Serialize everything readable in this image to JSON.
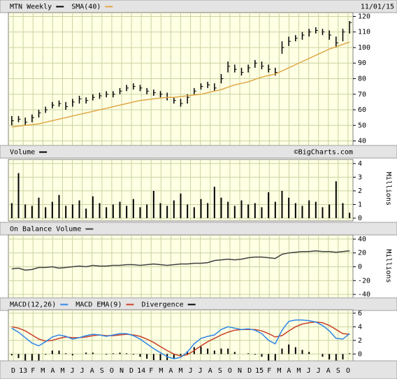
{
  "chart_data": [
    {
      "type": "ohlc",
      "date": "11/01/15",
      "series": [
        {
          "name": "MTN Weekly",
          "color": "#000000",
          "high": [
            56,
            56,
            55,
            57,
            60,
            62,
            65,
            66,
            65,
            67,
            69,
            68,
            70,
            71,
            72,
            72,
            74,
            76,
            77,
            76,
            74,
            73,
            72,
            71,
            68,
            67,
            70,
            74,
            77,
            78,
            77,
            83,
            91,
            89,
            87,
            89,
            92,
            91,
            89,
            87,
            104,
            107,
            108,
            110,
            112,
            113,
            112,
            111,
            107,
            112,
            117
          ],
          "low": [
            50,
            52,
            50,
            52,
            55,
            58,
            61,
            62,
            60,
            62,
            64,
            64,
            66,
            67,
            68,
            68,
            70,
            72,
            73,
            72,
            70,
            69,
            68,
            66,
            64,
            62,
            64,
            70,
            73,
            74,
            72,
            77,
            84,
            84,
            82,
            84,
            87,
            86,
            84,
            82,
            96,
            101,
            104,
            105,
            107,
            109,
            108,
            105,
            100,
            104,
            109
          ],
          "close": [
            53,
            54,
            52,
            55,
            58,
            60,
            63,
            64,
            62,
            65,
            67,
            66,
            68,
            69,
            70,
            70,
            72,
            74,
            75,
            74,
            72,
            71,
            70,
            68,
            66,
            64,
            68,
            72,
            75,
            76,
            74,
            80,
            88,
            86,
            84,
            87,
            90,
            88,
            86,
            84,
            100,
            104,
            106,
            108,
            110,
            111,
            110,
            108,
            103,
            110,
            116
          ]
        },
        {
          "name": "SMA(40)",
          "color": "#e0a848",
          "values": [
            49,
            49.5,
            50,
            50.5,
            51,
            52,
            53,
            54,
            55,
            56,
            57,
            58,
            59,
            60,
            61,
            62,
            63,
            64,
            65,
            66,
            66.5,
            67,
            67.5,
            68,
            68,
            68.5,
            69,
            69.5,
            70,
            71,
            72,
            73,
            74.5,
            76,
            77,
            78,
            79.5,
            81,
            82,
            83,
            85,
            87,
            89,
            91,
            93,
            95,
            97,
            99,
            100.5,
            102,
            103.5
          ]
        }
      ],
      "ylim": [
        38,
        122
      ],
      "yticks": [
        40,
        50,
        60,
        70,
        80,
        90,
        100,
        110,
        120
      ],
      "grid": true
    },
    {
      "type": "bar",
      "credit": "©BigCharts.com",
      "unit": "Millions",
      "series": [
        {
          "name": "Volume",
          "color": "#000000",
          "values": [
            1.1,
            3.3,
            1.0,
            0.9,
            1.5,
            0.8,
            1.2,
            1.7,
            0.9,
            1.0,
            1.3,
            0.7,
            1.6,
            1.1,
            0.8,
            1.0,
            1.2,
            0.9,
            1.4,
            0.8,
            1.0,
            2.0,
            1.1,
            0.9,
            1.3,
            1.8,
            1.0,
            0.8,
            1.4,
            1.1,
            2.3,
            1.5,
            1.2,
            0.9,
            1.3,
            1.0,
            1.1,
            0.8,
            1.9,
            1.2,
            2.0,
            1.5,
            1.1,
            0.9,
            1.3,
            1.2,
            0.8,
            1.0,
            2.7,
            1.1,
            0.4
          ]
        }
      ],
      "ylim": [
        0,
        4.3
      ],
      "yticks": [
        0,
        1,
        2,
        3,
        4
      ],
      "grid": true
    },
    {
      "type": "line",
      "unit": "Millions",
      "series": [
        {
          "name": "On Balance Volume",
          "color": "#404040",
          "values": [
            -3,
            -2,
            -5,
            -4,
            -1,
            -1,
            0,
            -2,
            -1,
            0,
            1,
            0,
            2,
            1,
            1,
            2,
            2,
            3,
            3,
            2,
            3,
            4,
            3,
            2,
            3,
            4,
            4,
            5,
            5,
            6,
            9,
            10,
            11,
            10,
            11,
            13,
            14,
            14,
            13,
            12,
            18,
            20,
            21,
            22,
            22,
            23,
            22,
            22,
            21,
            22,
            23
          ]
        }
      ],
      "ylim": [
        -44,
        46
      ],
      "yticks": [
        -40,
        -20,
        0,
        20,
        40
      ],
      "grid": true
    },
    {
      "type": "macd",
      "series": [
        {
          "name": "MACD(12,26)",
          "color": "#2f86e8",
          "values": [
            3.8,
            3.2,
            2.4,
            1.6,
            1.2,
            1.8,
            2.5,
            2.8,
            2.6,
            2.2,
            2.4,
            2.7,
            2.9,
            2.8,
            2.6,
            2.8,
            3.0,
            3.0,
            2.7,
            2.2,
            1.5,
            0.8,
            0.2,
            -0.4,
            -0.7,
            -0.5,
            0.3,
            1.5,
            2.3,
            2.6,
            2.8,
            3.6,
            4.0,
            3.8,
            3.6,
            3.7,
            3.5,
            3.0,
            2.0,
            1.5,
            3.5,
            4.8,
            5.0,
            5.0,
            4.9,
            4.7,
            4.2,
            3.4,
            2.3,
            2.2,
            3.0
          ]
        },
        {
          "name": "MACD EMA(9)",
          "color": "#c84028",
          "values": [
            4.0,
            3.8,
            3.4,
            2.8,
            2.2,
            1.9,
            2.0,
            2.3,
            2.5,
            2.4,
            2.4,
            2.5,
            2.7,
            2.8,
            2.7,
            2.7,
            2.8,
            2.9,
            2.8,
            2.6,
            2.2,
            1.7,
            1.1,
            0.5,
            0.0,
            -0.3,
            -0.1,
            0.5,
            1.2,
            1.8,
            2.3,
            2.8,
            3.2,
            3.5,
            3.6,
            3.6,
            3.6,
            3.4,
            3.0,
            2.5,
            2.7,
            3.4,
            4.0,
            4.4,
            4.6,
            4.7,
            4.6,
            4.2,
            3.6,
            3.0,
            2.9
          ]
        },
        {
          "name": "Divergence",
          "color": "#000000",
          "values": [
            -0.2,
            -0.6,
            -1.0,
            -1.2,
            -1.0,
            -0.1,
            0.5,
            0.5,
            0.1,
            -0.2,
            0.0,
            0.2,
            0.2,
            0.0,
            -0.1,
            0.1,
            0.2,
            0.1,
            -0.1,
            -0.4,
            -0.7,
            -0.9,
            -0.9,
            -0.9,
            -0.7,
            -0.2,
            0.4,
            1.0,
            1.1,
            0.8,
            0.5,
            0.8,
            0.8,
            0.3,
            0.0,
            0.1,
            -0.1,
            -0.4,
            -1.0,
            -1.0,
            0.8,
            1.4,
            1.0,
            0.6,
            0.3,
            0.0,
            -0.4,
            -0.8,
            -1.3,
            -0.8,
            0.1
          ]
        }
      ],
      "ylim": [
        -1,
        6.5
      ],
      "yticks": [
        0,
        2,
        4,
        6
      ],
      "grid": true,
      "x_labels": [
        "D",
        "13",
        "F",
        "M",
        "A",
        "M",
        "J",
        "J",
        "A",
        "S",
        "O",
        "N",
        "D",
        "14",
        "F",
        "M",
        "A",
        "M",
        "J",
        "J",
        "A",
        "S",
        "O",
        "N",
        "D",
        "15",
        "F",
        "M",
        "A",
        "M",
        "J",
        "J",
        "A",
        "S",
        "O"
      ]
    }
  ]
}
